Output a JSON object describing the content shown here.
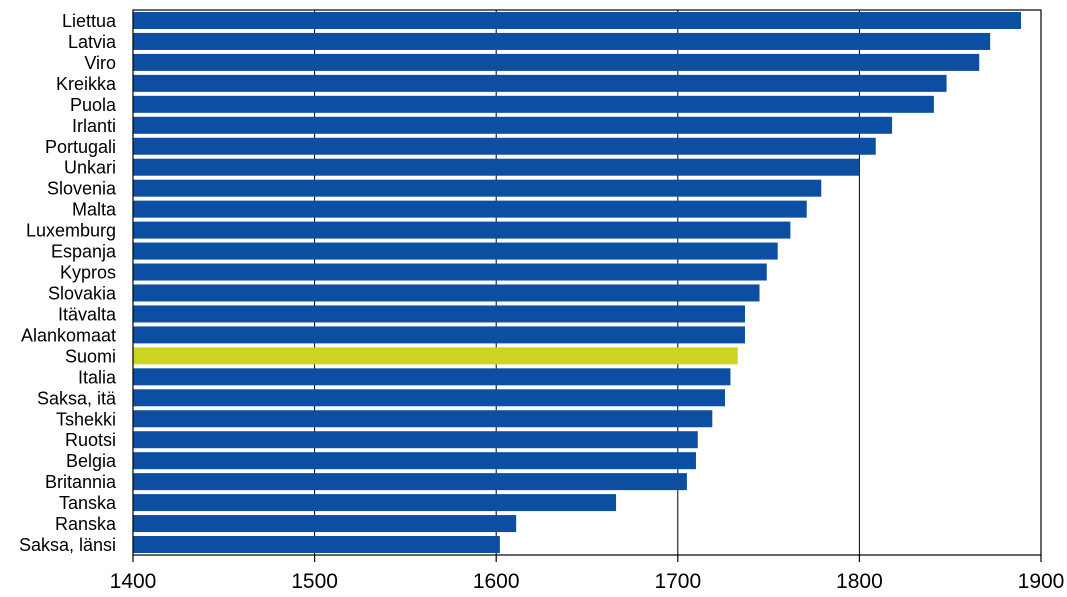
{
  "chart_data": {
    "type": "bar",
    "orientation": "horizontal",
    "title": "",
    "xlabel": "",
    "ylabel": "",
    "xlim": [
      1400,
      1900
    ],
    "xticks": [
      1400,
      1500,
      1600,
      1700,
      1800,
      1900
    ],
    "grid": true,
    "legend": "none",
    "categories": [
      "Liettua",
      "Latvia",
      "Viro",
      "Kreikka",
      "Puola",
      "Irlanti",
      "Portugali",
      "Unkari",
      "Slovenia",
      "Malta",
      "Luxemburg",
      "Espanja",
      "Kypros",
      "Slovakia",
      "Itävalta",
      "Alankomaat",
      "Suomi",
      "Italia",
      "Saksa, itä",
      "Tshekki",
      "Ruotsi",
      "Belgia",
      "Britannia",
      "Tanska",
      "Ranska",
      "Saksa, länsi"
    ],
    "values": [
      1889,
      1872,
      1866,
      1848,
      1841,
      1818,
      1809,
      1800,
      1779,
      1771,
      1762,
      1755,
      1749,
      1745,
      1737,
      1737,
      1733,
      1729,
      1726,
      1719,
      1711,
      1710,
      1705,
      1666,
      1611,
      1602
    ],
    "highlight": "Suomi"
  },
  "colors": {
    "bar": "#0b4ea2",
    "highlight": "#cbd51f",
    "axis": "#000000",
    "grid": "#000000"
  }
}
